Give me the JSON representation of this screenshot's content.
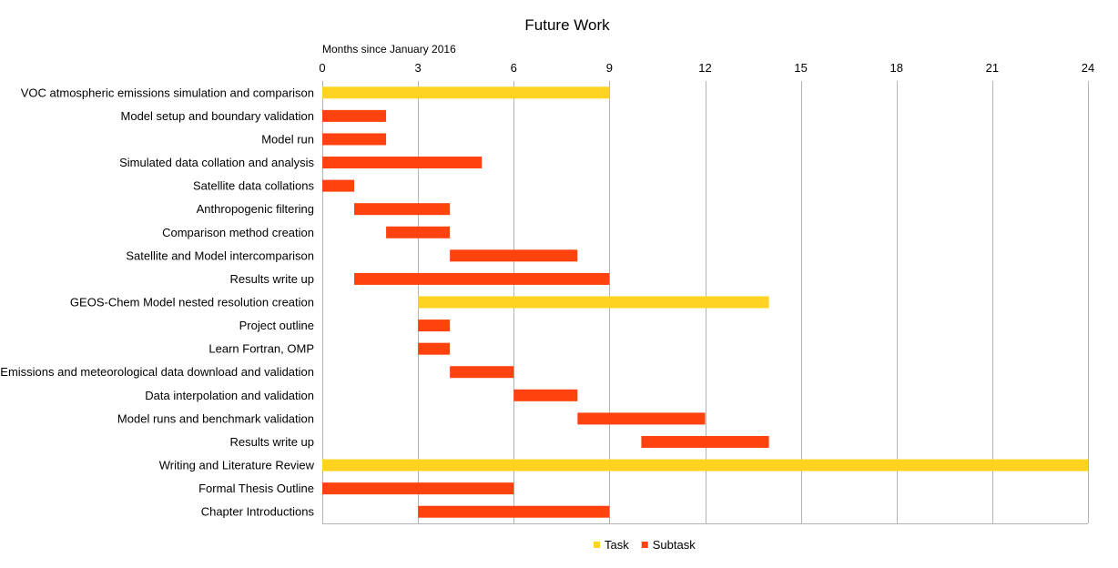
{
  "chart_data": {
    "type": "bar",
    "orientation": "horizontal-gantt",
    "title": "Future Work",
    "xlabel": "Months since January 2016",
    "xlim": [
      0,
      24
    ],
    "xticks": [
      0,
      3,
      6,
      9,
      12,
      15,
      18,
      21,
      24
    ],
    "grid": "vertical",
    "legend_position": "bottom",
    "series": [
      {
        "name": "Task",
        "color": "#ffd320"
      },
      {
        "name": "Subtask",
        "color": "#ff420e"
      }
    ],
    "tasks": [
      {
        "label": "VOC atmospheric emissions simulation and comparison",
        "start": 0,
        "end": 9,
        "series": "Task"
      },
      {
        "label": "Model setup and boundary validation",
        "start": 0,
        "end": 2,
        "series": "Subtask"
      },
      {
        "label": "Model run",
        "start": 0,
        "end": 2,
        "series": "Subtask"
      },
      {
        "label": "Simulated data collation and analysis",
        "start": 0,
        "end": 5,
        "series": "Subtask"
      },
      {
        "label": "Satellite data collations",
        "start": 0,
        "end": 1,
        "series": "Subtask"
      },
      {
        "label": "Anthropogenic filtering",
        "start": 1,
        "end": 4,
        "series": "Subtask"
      },
      {
        "label": "Comparison method creation",
        "start": 2,
        "end": 4,
        "series": "Subtask"
      },
      {
        "label": "Satellite and Model intercomparison",
        "start": 4,
        "end": 8,
        "series": "Subtask"
      },
      {
        "label": "Results write up",
        "start": 1,
        "end": 9,
        "series": "Subtask"
      },
      {
        "label": "GEOS-Chem Model nested resolution creation",
        "start": 3,
        "end": 14,
        "series": "Task"
      },
      {
        "label": "Project outline",
        "start": 3,
        "end": 4,
        "series": "Subtask"
      },
      {
        "label": "Learn Fortran, OMP",
        "start": 3,
        "end": 4,
        "series": "Subtask"
      },
      {
        "label": "Emissions and meteorological data download and validation",
        "start": 4,
        "end": 6,
        "series": "Subtask"
      },
      {
        "label": "Data interpolation and validation",
        "start": 6,
        "end": 8,
        "series": "Subtask"
      },
      {
        "label": "Model runs and benchmark validation",
        "start": 8,
        "end": 12,
        "series": "Subtask"
      },
      {
        "label": "Results write up",
        "start": 10,
        "end": 14,
        "series": "Subtask"
      },
      {
        "label": "Writing and Literature Review",
        "start": 0,
        "end": 24,
        "series": "Task"
      },
      {
        "label": "Formal Thesis Outline",
        "start": 0,
        "end": 6,
        "series": "Subtask"
      },
      {
        "label": "Chapter Introductions",
        "start": 3,
        "end": 9,
        "series": "Subtask"
      }
    ]
  }
}
